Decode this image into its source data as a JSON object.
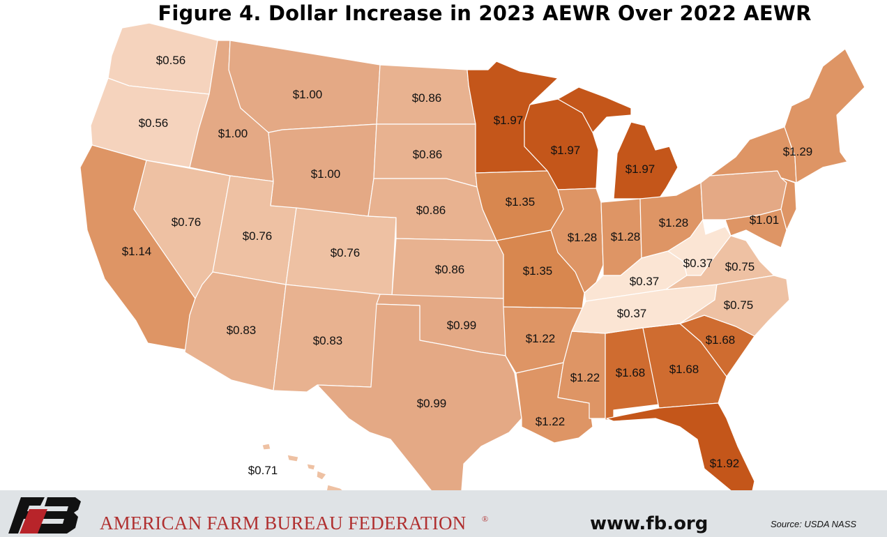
{
  "title": "Figure 4. Dollar Increase in 2023 AEWR Over 2022 AEWR",
  "colors": {
    "v037": "#fbe5d4",
    "v056": "#f5d3bd",
    "v071_076": "#eec1a3",
    "v083_086": "#e8b290",
    "v099_101": "#e4a985",
    "v114_129": "#de9565",
    "v135": "#d8874f",
    "v168": "#cf6c30",
    "v192_197": "#c4561a",
    "footer_bg": "#dfe3e6",
    "org_text": "#b03030"
  },
  "map_data": {
    "regions": [
      {
        "state": "Washington",
        "value": "$0.56"
      },
      {
        "state": "Oregon",
        "value": "$0.56"
      },
      {
        "state": "California",
        "value": "$1.14"
      },
      {
        "state": "Nevada",
        "value": "$0.76"
      },
      {
        "state": "Idaho",
        "value": "$1.00"
      },
      {
        "state": "Montana",
        "value": "$1.00"
      },
      {
        "state": "Wyoming",
        "value": "$1.00"
      },
      {
        "state": "Utah",
        "value": "$0.76"
      },
      {
        "state": "Colorado",
        "value": "$0.76"
      },
      {
        "state": "Arizona",
        "value": "$0.83"
      },
      {
        "state": "New Mexico",
        "value": "$0.83"
      },
      {
        "state": "North Dakota",
        "value": "$0.86"
      },
      {
        "state": "South Dakota",
        "value": "$0.86"
      },
      {
        "state": "Nebraska",
        "value": "$0.86"
      },
      {
        "state": "Kansas",
        "value": "$0.86"
      },
      {
        "state": "Oklahoma",
        "value": "$0.99"
      },
      {
        "state": "Texas",
        "value": "$0.99"
      },
      {
        "state": "Minnesota",
        "value": "$1.97"
      },
      {
        "state": "Wisconsin",
        "value": "$1.97"
      },
      {
        "state": "Michigan",
        "value": "$1.97"
      },
      {
        "state": "Iowa",
        "value": "$1.35"
      },
      {
        "state": "Missouri",
        "value": "$1.35"
      },
      {
        "state": "Illinois",
        "value": "$1.28"
      },
      {
        "state": "Indiana",
        "value": "$1.28"
      },
      {
        "state": "Ohio",
        "value": "$1.28"
      },
      {
        "state": "Arkansas",
        "value": "$1.22"
      },
      {
        "state": "Louisiana",
        "value": "$1.22"
      },
      {
        "state": "Mississippi",
        "value": "$1.22"
      },
      {
        "state": "Alabama",
        "value": "$1.68"
      },
      {
        "state": "Georgia",
        "value": "$1.68"
      },
      {
        "state": "South Carolina",
        "value": "$1.68"
      },
      {
        "state": "Florida",
        "value": "$1.92"
      },
      {
        "state": "Kentucky",
        "value": "$0.37"
      },
      {
        "state": "Tennessee",
        "value": "$0.37"
      },
      {
        "state": "West Virginia",
        "value": "$0.37"
      },
      {
        "state": "Virginia",
        "value": "$0.75"
      },
      {
        "state": "North Carolina",
        "value": "$0.75"
      },
      {
        "state": "Pennsylvania",
        "value": "$1.01"
      },
      {
        "state": "Northeast",
        "value": "$1.29"
      },
      {
        "state": "Hawaii",
        "value": "$0.71"
      }
    ]
  },
  "footer": {
    "organization": "AMERICAN FARM BUREAU FEDERATION",
    "registered_mark": "®",
    "website": "www.fb.org",
    "source": "Source: USDA NASS"
  }
}
